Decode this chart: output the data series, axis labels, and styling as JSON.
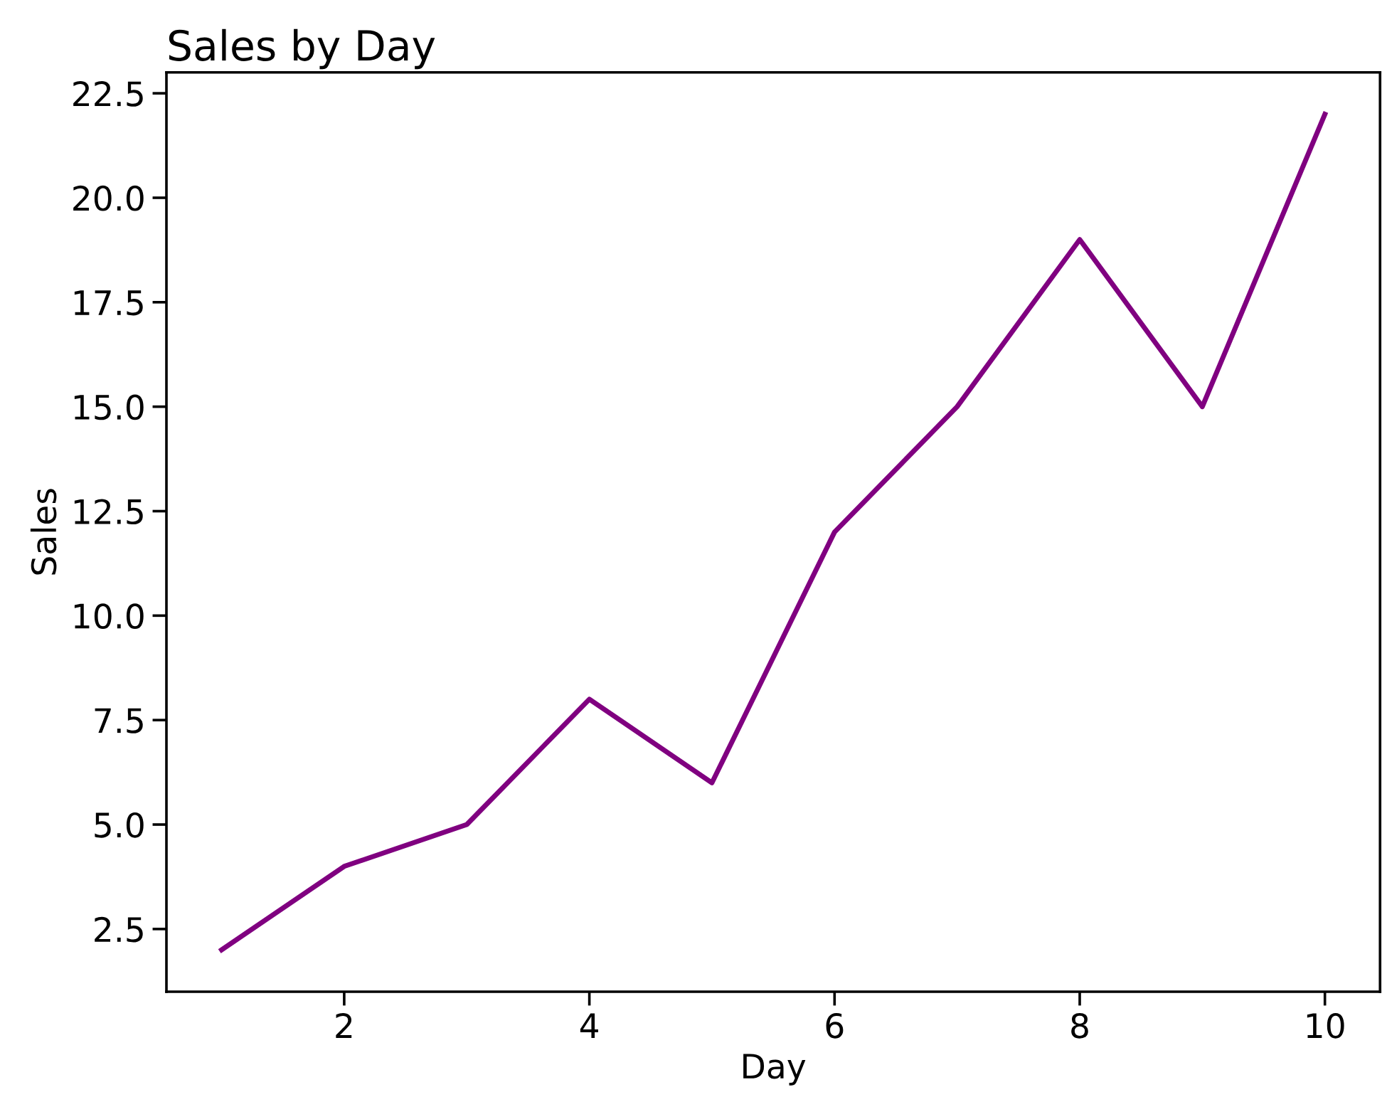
{
  "chart_data": {
    "type": "line",
    "title": "Sales by Day",
    "xlabel": "Day",
    "ylabel": "Sales",
    "x": [
      1,
      2,
      3,
      4,
      5,
      6,
      7,
      8,
      9,
      10
    ],
    "series": [
      {
        "color": "#800080",
        "values": [
          2,
          4,
          5,
          8,
          6,
          12,
          15,
          19,
          15,
          22
        ]
      }
    ],
    "xlim": [
      0.55,
      10.45
    ],
    "xticks": [
      2,
      4,
      6,
      8,
      10
    ],
    "ylim": [
      1,
      23
    ],
    "yticks": [
      2.5,
      {
        "value": 5,
        "label": "5.0"
      },
      7.5,
      {
        "value": 10,
        "label": "10.0"
      },
      12.5,
      {
        "value": 15,
        "label": "15.0"
      },
      17.5,
      {
        "value": 20,
        "label": "20.0"
      },
      22.5
    ],
    "grid": false,
    "legend": false
  }
}
